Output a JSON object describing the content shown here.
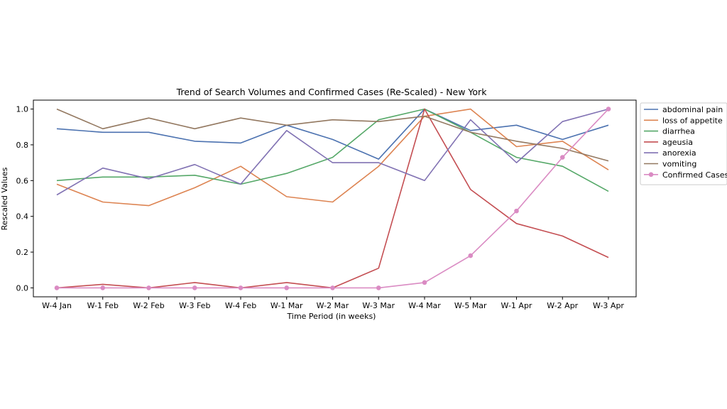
{
  "chart_data": {
    "type": "line",
    "title": "Trend of Search Volumes and Confirmed Cases (Re-Scaled) - New York",
    "xlabel": "Time Period (in weeks)",
    "ylabel": "Rescaled Values",
    "categories": [
      "W-4 Jan",
      "W-1 Feb",
      "W-2 Feb",
      "W-3 Feb",
      "W-4 Feb",
      "W-1 Mar",
      "W-2 Mar",
      "W-3 Mar",
      "W-4 Mar",
      "W-5 Mar",
      "W-1 Apr",
      "W-2 Apr",
      "W-3 Apr"
    ],
    "yticks": [
      "0.0",
      "0.2",
      "0.4",
      "0.6",
      "0.8",
      "1.0"
    ],
    "ylim": [
      -0.05,
      1.05
    ],
    "grid": false,
    "legend_position": "outside-right-top",
    "series": [
      {
        "name": "abdominal pain",
        "color": "#4c72b0",
        "marker": "none",
        "values": [
          0.89,
          0.87,
          0.87,
          0.82,
          0.81,
          0.91,
          0.83,
          0.72,
          1.0,
          0.88,
          0.91,
          0.83,
          0.91
        ]
      },
      {
        "name": "loss of appetite",
        "color": "#dd8452",
        "marker": "none",
        "values": [
          0.58,
          0.48,
          0.46,
          0.56,
          0.68,
          0.51,
          0.48,
          0.68,
          0.96,
          1.0,
          0.79,
          0.82,
          0.66
        ]
      },
      {
        "name": "diarrhea",
        "color": "#55a868",
        "marker": "none",
        "values": [
          0.6,
          0.62,
          0.62,
          0.63,
          0.58,
          0.64,
          0.73,
          0.94,
          1.0,
          0.87,
          0.73,
          0.68,
          0.54
        ]
      },
      {
        "name": "ageusia",
        "color": "#c44e52",
        "marker": "none",
        "values": [
          0.0,
          0.02,
          0.0,
          0.03,
          0.0,
          0.03,
          0.0,
          0.11,
          1.0,
          0.55,
          0.36,
          0.29,
          0.17
        ]
      },
      {
        "name": "anorexia",
        "color": "#8172b3",
        "marker": "none",
        "values": [
          0.52,
          0.67,
          0.61,
          0.69,
          0.58,
          0.88,
          0.7,
          0.7,
          0.6,
          0.94,
          0.7,
          0.93,
          1.0
        ]
      },
      {
        "name": "vomiting",
        "color": "#937860",
        "marker": "none",
        "values": [
          1.0,
          0.89,
          0.95,
          0.89,
          0.95,
          0.91,
          0.94,
          0.93,
          0.96,
          0.87,
          0.82,
          0.78,
          0.71
        ]
      },
      {
        "name": "Confirmed Cases",
        "color": "#da8bc3",
        "marker": "circle",
        "values": [
          0.0,
          0.0,
          0.0,
          0.0,
          0.0,
          0.0,
          0.0,
          0.0,
          0.03,
          0.18,
          0.43,
          0.73,
          1.0
        ]
      }
    ]
  }
}
